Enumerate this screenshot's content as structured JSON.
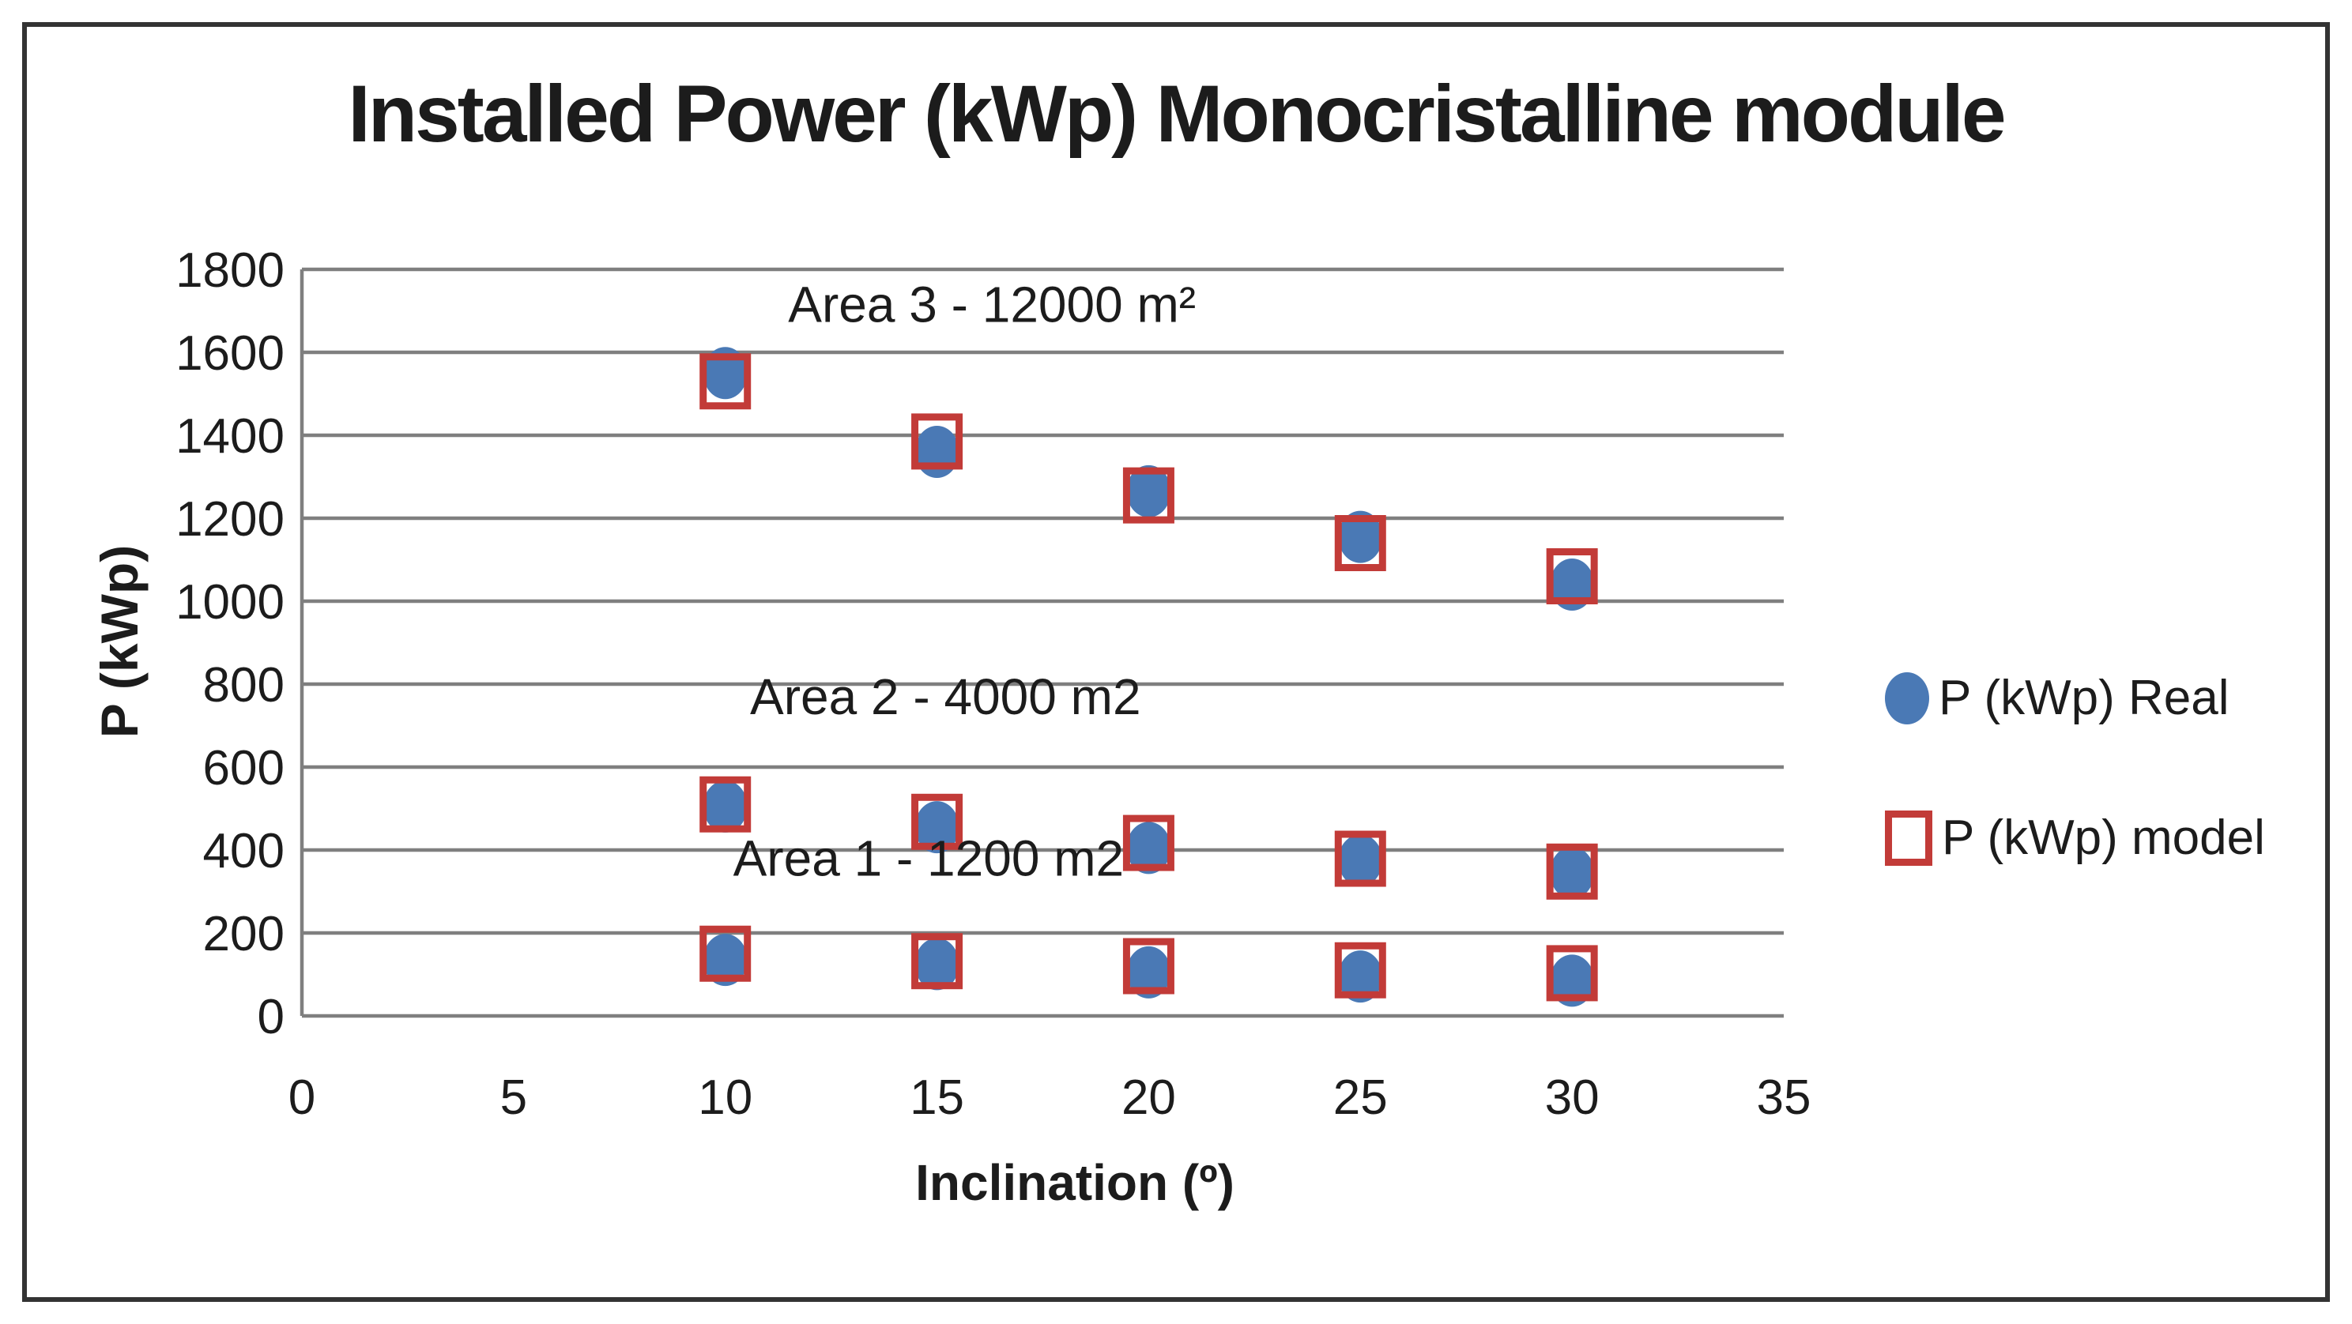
{
  "chart_data": {
    "type": "scatter",
    "title": "Installed Power (kWp) Monocristalline module",
    "xlabel": "Inclination (º)",
    "ylabel": "P (kWp)",
    "xlim": [
      0,
      35
    ],
    "xstep": 5,
    "ylim": [
      0,
      1800
    ],
    "ystep": 200,
    "grid": "horizontal",
    "legend_position": "right",
    "x": [
      10,
      15,
      20,
      25,
      30
    ],
    "series": [
      {
        "name": "P (kWp) Real",
        "marker": "circle",
        "color": "#4a79b5",
        "groups": [
          {
            "area": "Area 3 - 12000 m²",
            "values": [
              1550,
              1360,
              1265,
              1155,
              1040
            ]
          },
          {
            "area": "Area 2 - 4000 m2",
            "values": [
              505,
              455,
              405,
              375,
              345
            ]
          },
          {
            "area": "Area 1 - 1200 m2",
            "values": [
              135,
              125,
              105,
              95,
              85
            ]
          }
        ]
      },
      {
        "name": "P (kWp) model",
        "marker": "open-square",
        "color": "#c23b38",
        "groups": [
          {
            "area": "Area 3 - 12000 m²",
            "values": [
              1530,
              1385,
              1255,
              1140,
              1060
            ]
          },
          {
            "area": "Area 2 - 4000 m2",
            "values": [
              510,
              468,
              417,
              379,
              348
            ]
          },
          {
            "area": "Area 1 - 1200 m2",
            "values": [
              150,
              132,
              120,
              110,
              103
            ]
          }
        ]
      }
    ],
    "annotations": [
      {
        "text": "Area 3 - 12000 m²",
        "x": 16.3,
        "y": 1715
      },
      {
        "text": "Area 2 - 4000 m2",
        "x": 15.2,
        "y": 770
      },
      {
        "text": "Area 1 - 1200 m2",
        "x": 14.8,
        "y": 380
      }
    ],
    "colors": {
      "gridline": "#7f7f7f",
      "text": "#1c1c1c",
      "frame": "#333333",
      "background": "#ffffff"
    }
  }
}
